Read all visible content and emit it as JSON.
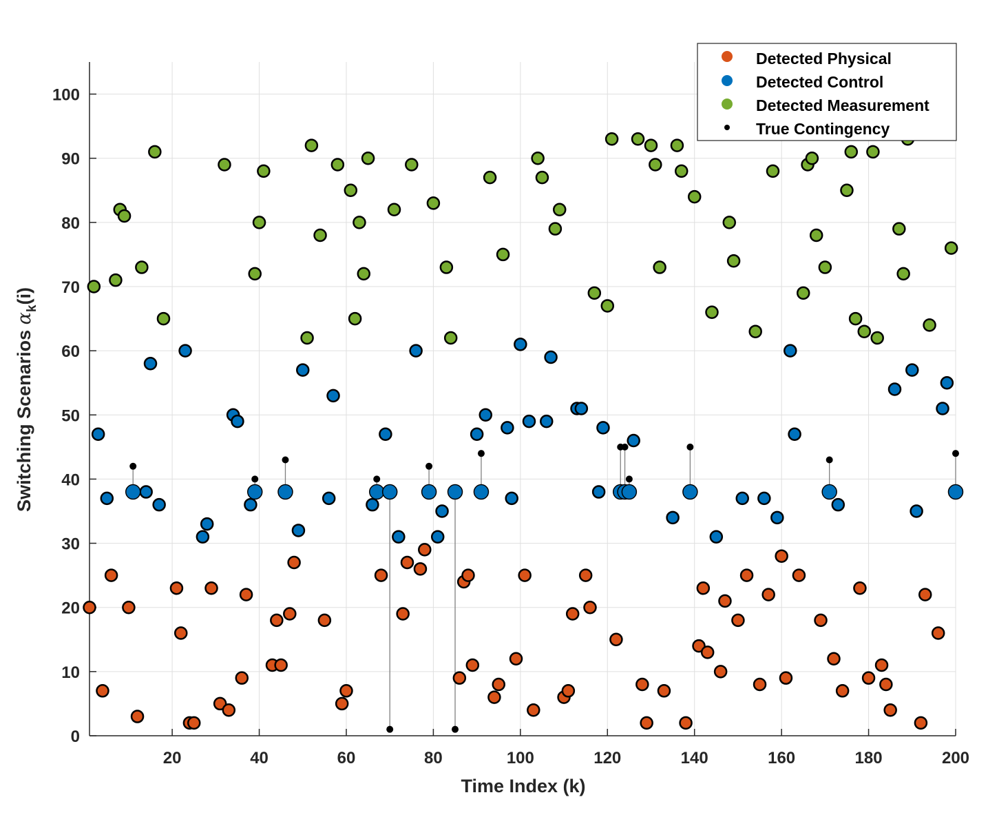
{
  "chart_data": {
    "type": "scatter",
    "xlabel": "Time Index (k)",
    "ylabel_main": "Switching Scenarios ",
    "ylabel_symbol": "α",
    "ylabel_sub": "k",
    "ylabel_tail": "(i)",
    "xlim": [
      1,
      200
    ],
    "ylim": [
      0,
      105
    ],
    "xticks": [
      20,
      40,
      60,
      80,
      100,
      120,
      140,
      160,
      180,
      200
    ],
    "yticks": [
      0,
      10,
      20,
      30,
      40,
      50,
      60,
      70,
      80,
      90,
      100
    ],
    "grid": true,
    "legend_position": "top-right",
    "colors": {
      "physical": "#D95319",
      "control": "#0072BD",
      "measurement": "#77AC30",
      "true": "#000000",
      "stem": "#808080",
      "grid": "#DFDFDF"
    },
    "series": [
      {
        "name": "Detected Physical",
        "x": [
          1,
          4,
          6,
          10,
          12,
          21,
          22,
          24,
          25,
          29,
          31,
          33,
          36,
          37,
          43,
          44,
          45,
          47,
          48,
          55,
          59,
          60,
          68,
          73,
          74,
          77,
          78,
          86,
          87,
          88,
          89,
          94,
          95,
          99,
          101,
          103,
          110,
          111,
          112,
          115,
          116,
          122,
          128,
          129,
          133,
          138,
          141,
          142,
          143,
          146,
          147,
          150,
          152,
          155,
          157,
          160,
          161,
          164,
          169,
          172,
          174,
          178,
          180,
          183,
          184,
          185,
          192,
          193,
          196
        ],
        "y": [
          20,
          7,
          25,
          20,
          3,
          23,
          16,
          2,
          2,
          23,
          5,
          4,
          9,
          22,
          11,
          18,
          11,
          19,
          27,
          18,
          5,
          7,
          25,
          19,
          27,
          26,
          29,
          9,
          24,
          25,
          11,
          6,
          8,
          12,
          25,
          4,
          6,
          7,
          19,
          25,
          20,
          15,
          8,
          2,
          7,
          2,
          14,
          23,
          13,
          10,
          21,
          18,
          25,
          8,
          22,
          28,
          9,
          25,
          18,
          12,
          7,
          23,
          9,
          11,
          8,
          4,
          2,
          22,
          16
        ]
      },
      {
        "name": "Detected Control",
        "x": [
          3,
          5,
          14,
          15,
          17,
          23,
          27,
          28,
          34,
          35,
          38,
          49,
          50,
          56,
          57,
          66,
          69,
          72,
          76,
          81,
          82,
          90,
          92,
          97,
          98,
          100,
          102,
          106,
          107,
          113,
          114,
          118,
          119,
          126,
          135,
          145,
          151,
          156,
          159,
          162,
          163,
          173,
          186,
          190,
          191,
          197,
          198
        ],
        "y": [
          47,
          37,
          38,
          58,
          36,
          60,
          31,
          33,
          50,
          49,
          36,
          32,
          57,
          37,
          53,
          36,
          47,
          31,
          60,
          31,
          35,
          47,
          50,
          48,
          37,
          61,
          49,
          49,
          59,
          51,
          51,
          38,
          48,
          46,
          34,
          31,
          37,
          37,
          34,
          60,
          47,
          36,
          54,
          57,
          35,
          51,
          55
        ]
      },
      {
        "name": "Detected Measurement",
        "x": [
          2,
          7,
          8,
          9,
          13,
          16,
          18,
          32,
          39,
          40,
          41,
          51,
          52,
          54,
          58,
          61,
          62,
          63,
          64,
          65,
          71,
          75,
          80,
          83,
          84,
          93,
          96,
          104,
          105,
          108,
          109,
          117,
          120,
          121,
          127,
          130,
          131,
          132,
          136,
          137,
          140,
          144,
          148,
          149,
          154,
          158,
          165,
          166,
          167,
          168,
          170,
          175,
          176,
          177,
          179,
          181,
          182,
          187,
          188,
          189,
          194,
          199
        ],
        "y": [
          70,
          71,
          82,
          81,
          73,
          91,
          65,
          89,
          72,
          80,
          88,
          62,
          92,
          78,
          89,
          85,
          65,
          80,
          72,
          90,
          82,
          89,
          83,
          73,
          62,
          87,
          75,
          90,
          87,
          79,
          82,
          69,
          67,
          93,
          93,
          92,
          89,
          73,
          92,
          88,
          84,
          66,
          80,
          74,
          63,
          88,
          69,
          89,
          90,
          78,
          73,
          85,
          91,
          65,
          63,
          91,
          62,
          79,
          72,
          93,
          64,
          76
        ]
      },
      {
        "name": "True Contingency",
        "x": [
          11,
          39,
          46,
          67,
          70,
          79,
          85,
          91,
          123,
          124,
          125,
          139,
          171,
          200
        ],
        "y": [
          42,
          40,
          43,
          40,
          1,
          42,
          1,
          44,
          45,
          45,
          40,
          45,
          43,
          44
        ]
      },
      {
        "name": "",
        "x": [
          11,
          39,
          46,
          67,
          70,
          79,
          85,
          91,
          123,
          124,
          125,
          139,
          171,
          200
        ],
        "y": [
          38,
          38,
          38,
          38,
          38,
          38,
          38,
          38,
          38,
          38,
          38,
          38,
          38,
          38
        ]
      }
    ]
  }
}
